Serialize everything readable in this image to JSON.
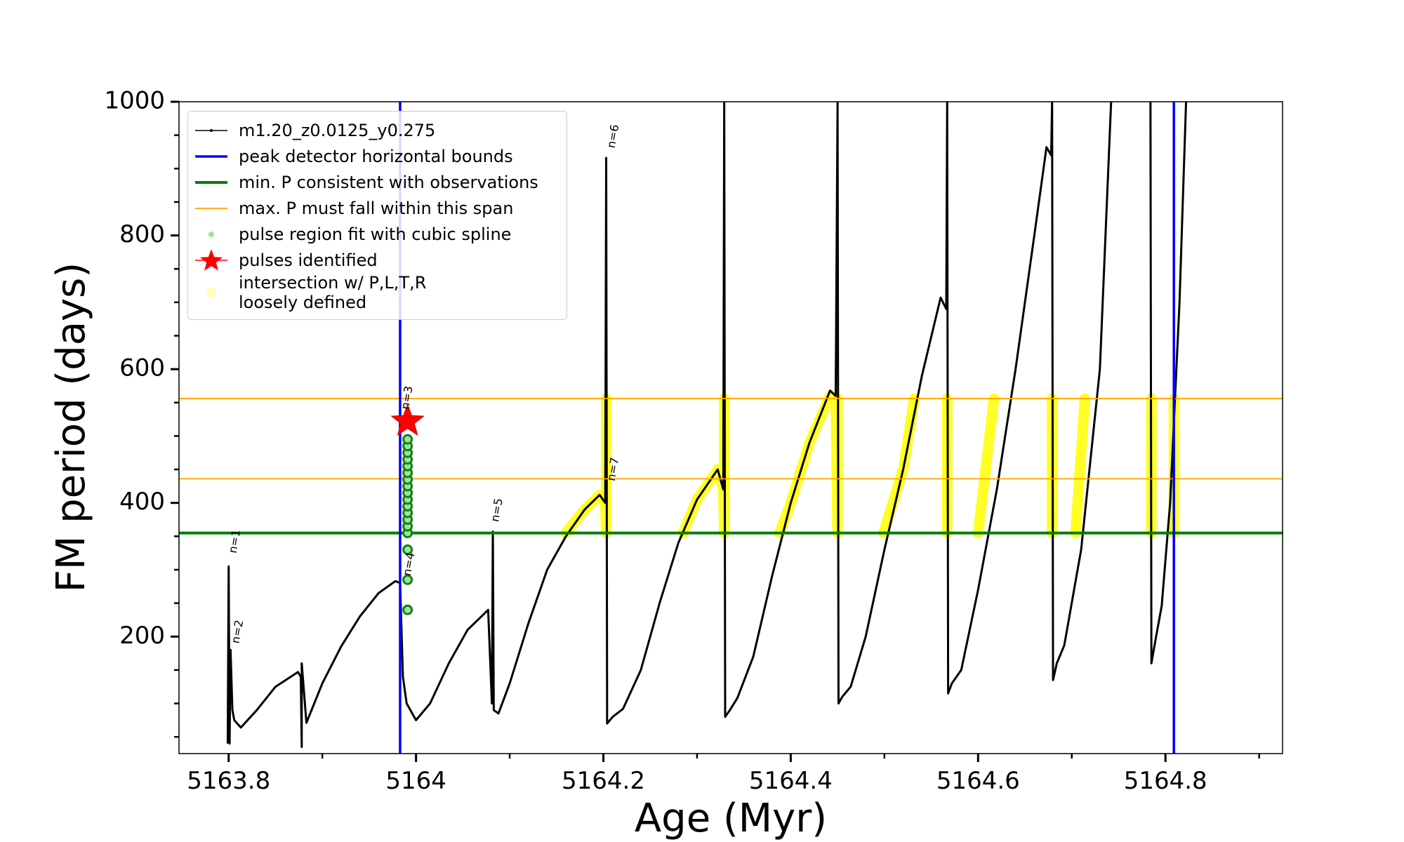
{
  "chart_data": {
    "type": "line",
    "xlabel": "Age (Myr)",
    "ylabel": "FM period (days)",
    "xlim": [
      5163.747,
      5164.925
    ],
    "ylim": [
      25,
      1000
    ],
    "xticks": [
      5163.8,
      5164.0,
      5164.2,
      5164.4,
      5164.6,
      5164.8
    ],
    "xminorticks": [
      5163.9,
      5164.1,
      5164.3,
      5164.5,
      5164.7,
      5164.9
    ],
    "yticks": [
      200,
      400,
      600,
      800,
      1000
    ],
    "yminorticks": [
      50,
      100,
      150,
      250,
      300,
      350,
      450,
      500,
      550,
      650,
      700,
      750,
      850,
      900,
      950
    ],
    "legend": "upper left",
    "series": [
      {
        "name": "m1.20_z0.0125_y0.275",
        "color": "#000000",
        "kind": "line",
        "x": [
          5163.799,
          5163.8,
          5163.801,
          5163.802,
          5163.804,
          5163.806,
          5163.813,
          5163.83,
          5163.85,
          5163.874,
          5163.877,
          5163.878,
          5163.878,
          5163.883,
          5163.9,
          5163.92,
          5163.94,
          5163.96,
          5163.978,
          5163.983,
          5163.986,
          5163.99,
          5164.0,
          5164.015,
          5164.035,
          5164.055,
          5164.077,
          5164.081,
          5164.082,
          5164.083,
          5164.088,
          5164.1,
          5164.12,
          5164.14,
          5164.16,
          5164.18,
          5164.196,
          5164.202,
          5164.203,
          5164.204,
          5164.21,
          5164.221,
          5164.24,
          5164.26,
          5164.28,
          5164.3,
          5164.322,
          5164.328,
          5164.329,
          5164.33,
          5164.335,
          5164.343,
          5164.36,
          5164.38,
          5164.4,
          5164.42,
          5164.442,
          5164.448,
          5164.45,
          5164.451,
          5164.455,
          5164.464,
          5164.48,
          5164.5,
          5164.52,
          5164.54,
          5164.56,
          5164.566,
          5164.567,
          5164.568,
          5164.572,
          5164.582,
          5164.6,
          5164.62,
          5164.64,
          5164.66,
          5164.673,
          5164.678,
          5164.679,
          5164.68,
          5164.684,
          5164.692,
          5164.71,
          5164.73,
          5164.742,
          5164.76,
          5164.784,
          5164.785,
          5164.79,
          5164.796,
          5164.805,
          5164.815,
          5164.822
        ],
        "values": [
          40,
          305,
          40,
          180,
          90,
          75,
          64,
          90,
          125,
          147,
          140,
          35,
          160,
          71,
          130,
          185,
          230,
          265,
          283,
          280,
          140,
          100,
          75,
          100,
          160,
          210,
          240,
          100,
          357,
          90,
          85,
          130,
          220,
          300,
          350,
          390,
          412,
          400,
          916,
          70,
          80,
          92,
          150,
          250,
          340,
          405,
          450,
          420,
          1000,
          80,
          90,
          108,
          170,
          290,
          400,
          490,
          568,
          560,
          1000,
          100,
          110,
          125,
          200,
          330,
          450,
          590,
          707,
          690,
          1000,
          115,
          130,
          150,
          270,
          420,
          600,
          800,
          932,
          920,
          1000,
          135,
          160,
          187,
          330,
          600,
          1000,
          null,
          1000,
          160,
          200,
          246,
          400,
          700,
          1000
        ]
      },
      {
        "name": "peak detector horizontal bounds",
        "color": "#0000ff",
        "kind": "vline",
        "x": [
          5163.983,
          5164.809
        ]
      },
      {
        "name": "min. P consistent with observations",
        "color": "#008000",
        "kind": "hline",
        "values": [
          355
        ]
      },
      {
        "name": "max. P must fall within this span",
        "color": "#ffa500",
        "kind": "hline",
        "values": [
          436,
          556
        ]
      },
      {
        "name": "pulse region fit with cubic spline",
        "color": "#90ee90",
        "edgecolor": "#1e7b1e",
        "kind": "scatter",
        "x": [
          5163.991,
          5163.991,
          5163.991,
          5163.991,
          5163.991,
          5163.991,
          5163.991,
          5163.991,
          5163.991,
          5163.991,
          5163.991,
          5163.991,
          5163.991,
          5163.991,
          5163.991,
          5163.991,
          5163.991,
          5163.991
        ],
        "values": [
          240,
          285,
          330,
          355,
          365,
          375,
          385,
          395,
          405,
          415,
          425,
          435,
          445,
          455,
          465,
          475,
          485,
          495
        ]
      },
      {
        "name": "pulses identified",
        "color": "#ff0000",
        "kind": "star",
        "x": [
          5163.991
        ],
        "values": [
          522
        ]
      },
      {
        "name": "intersection w/ P,L,T,R\nloosely defined",
        "color": "#ffff00",
        "kind": "band",
        "x": [
          5164.16,
          5164.18,
          5164.196,
          5164.202,
          5164.203,
          5164.203,
          null,
          5164.285,
          5164.3,
          5164.322,
          5164.328,
          5164.329,
          5164.329,
          null,
          5164.388,
          5164.4,
          5164.42,
          5164.442,
          5164.448,
          5164.45,
          5164.45,
          null,
          5164.499,
          5164.52,
          5164.532,
          null,
          5164.567,
          5164.567,
          null,
          5164.6,
          5164.617,
          null,
          5164.679,
          5164.679,
          null,
          5164.704,
          5164.714,
          null,
          5164.785,
          5164.785,
          null,
          5164.809,
          5164.809
        ],
        "values": [
          355,
          390,
          412,
          400,
          355,
          556,
          null,
          355,
          405,
          450,
          420,
          355,
          556,
          null,
          355,
          400,
          490,
          560,
          556,
          355,
          556,
          null,
          355,
          450,
          556,
          null,
          355,
          556,
          null,
          355,
          556,
          null,
          355,
          556,
          null,
          355,
          556,
          null,
          355,
          556,
          null,
          355,
          556
        ]
      }
    ],
    "annotations": [
      {
        "text": "n=1",
        "x": 5163.808,
        "y": 324
      },
      {
        "text": "n=2",
        "x": 5163.811,
        "y": 189
      },
      {
        "text": "n=3",
        "x": 5163.992,
        "y": 539
      },
      {
        "text": "n=4",
        "x": 5163.994,
        "y": 290
      },
      {
        "text": "n=5",
        "x": 5164.088,
        "y": 371
      },
      {
        "text": "n=6",
        "x": 5164.212,
        "y": 930
      },
      {
        "text": "n=7",
        "x": 5164.212,
        "y": 432
      }
    ]
  }
}
